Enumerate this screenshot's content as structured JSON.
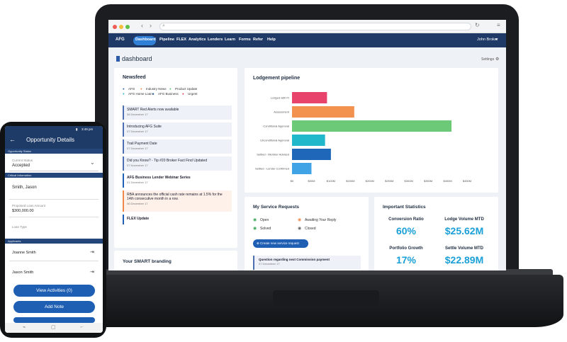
{
  "browser": {
    "bar_icon": "search-icon",
    "reload_icon": "reload-icon"
  },
  "nav": {
    "logo": "AFG",
    "items": [
      "Dashboard",
      "Pipeline",
      "FLEX",
      "Analytics",
      "Lenders",
      "Learn",
      "Forms",
      "Refer",
      "Help"
    ],
    "user": "John Broker"
  },
  "page": {
    "title": "dashboard",
    "settings": "Settings"
  },
  "newsfeed": {
    "title": "Newsfeed",
    "legend": [
      "AFG",
      "Industry News",
      "Product Update",
      "AFG Home Loans",
      "AFG Business",
      "Urgent"
    ],
    "legend_colors": [
      "#2a5aa8",
      "#f08a4b",
      "#5cc36b",
      "#2ab3c9",
      "#1f62b5",
      "#e03b55"
    ],
    "items": [
      {
        "title": "SMART Red Alerts now available",
        "date": "08 December 17"
      },
      {
        "title": "Introducing AFG Suite",
        "date": "07 December 17"
      },
      {
        "title": "Trail Payment Date",
        "date": "07 December 17"
      },
      {
        "title": "Did you Know? - Tip #20 Broker Fact Find Updated",
        "date": "07 November 17"
      },
      {
        "title": "AFG Business Lender Webinar Series",
        "date": "01 December 17"
      },
      {
        "title": "RBA announces the official cash rate remains at 1.5% for the 14th consecutive month in a row.",
        "date": "06 December 17"
      },
      {
        "title": "FLEX Update",
        "date": ""
      }
    ]
  },
  "branding": {
    "title": "Your SMART branding"
  },
  "pipeline": {
    "title": "Lodgement pipeline"
  },
  "chart_data": {
    "type": "bar",
    "orientation": "horizontal",
    "categories": [
      "Lodged with FI",
      "Assessment",
      "Conditional Approval",
      "Unconditional Approval",
      "Settled - Member Advised",
      "Settled - Lender Confirmed"
    ],
    "values": [
      90,
      160,
      410,
      85,
      100,
      50
    ],
    "colors": [
      "#e8436a",
      "#f2924e",
      "#6cc978",
      "#22b8cc",
      "#1f67b8",
      "#3fa3e6"
    ],
    "xticks": [
      "$0",
      "$50M",
      "$100M",
      "$150M",
      "$200M",
      "$250M",
      "$300M",
      "$350M",
      "$400M",
      "$450M"
    ],
    "xlim": [
      0,
      450
    ],
    "title": "Lodgement pipeline",
    "xlabel": "",
    "ylabel": ""
  },
  "service": {
    "title": "My Service Requests",
    "statuses": [
      "Open",
      "Awaiting Your Reply",
      "Solved",
      "Closed"
    ],
    "button": "Create new service request",
    "item_title": "Question regarding next Commission payment",
    "item_date": "07 December 17"
  },
  "stats": {
    "title": "Important Statistics",
    "items": [
      {
        "label": "Conversion Ratio",
        "value": "60%"
      },
      {
        "label": "Lodge Volume MTD",
        "value": "$25.62M"
      },
      {
        "label": "Portfolio Growth",
        "value": "17%"
      },
      {
        "label": "Settle Volume MTD",
        "value": "$22.89M"
      }
    ]
  },
  "phone": {
    "time": "3:49 pm",
    "title": "Opportunity Details",
    "section1": "Opportunity Status",
    "status_label": "Current Status",
    "status_value": "Accepted",
    "section2": "Critical Information",
    "client": "Smith, Jason",
    "amount_label": "Proposed Loan Amount",
    "amount": "$300,000.00",
    "loan_type_label": "Loan Type",
    "section3": "Applicants",
    "applicants": [
      "Joanne Smith",
      "Jason Smith"
    ],
    "btn_activities": "View Activities (0)",
    "btn_note": "Add Note"
  }
}
